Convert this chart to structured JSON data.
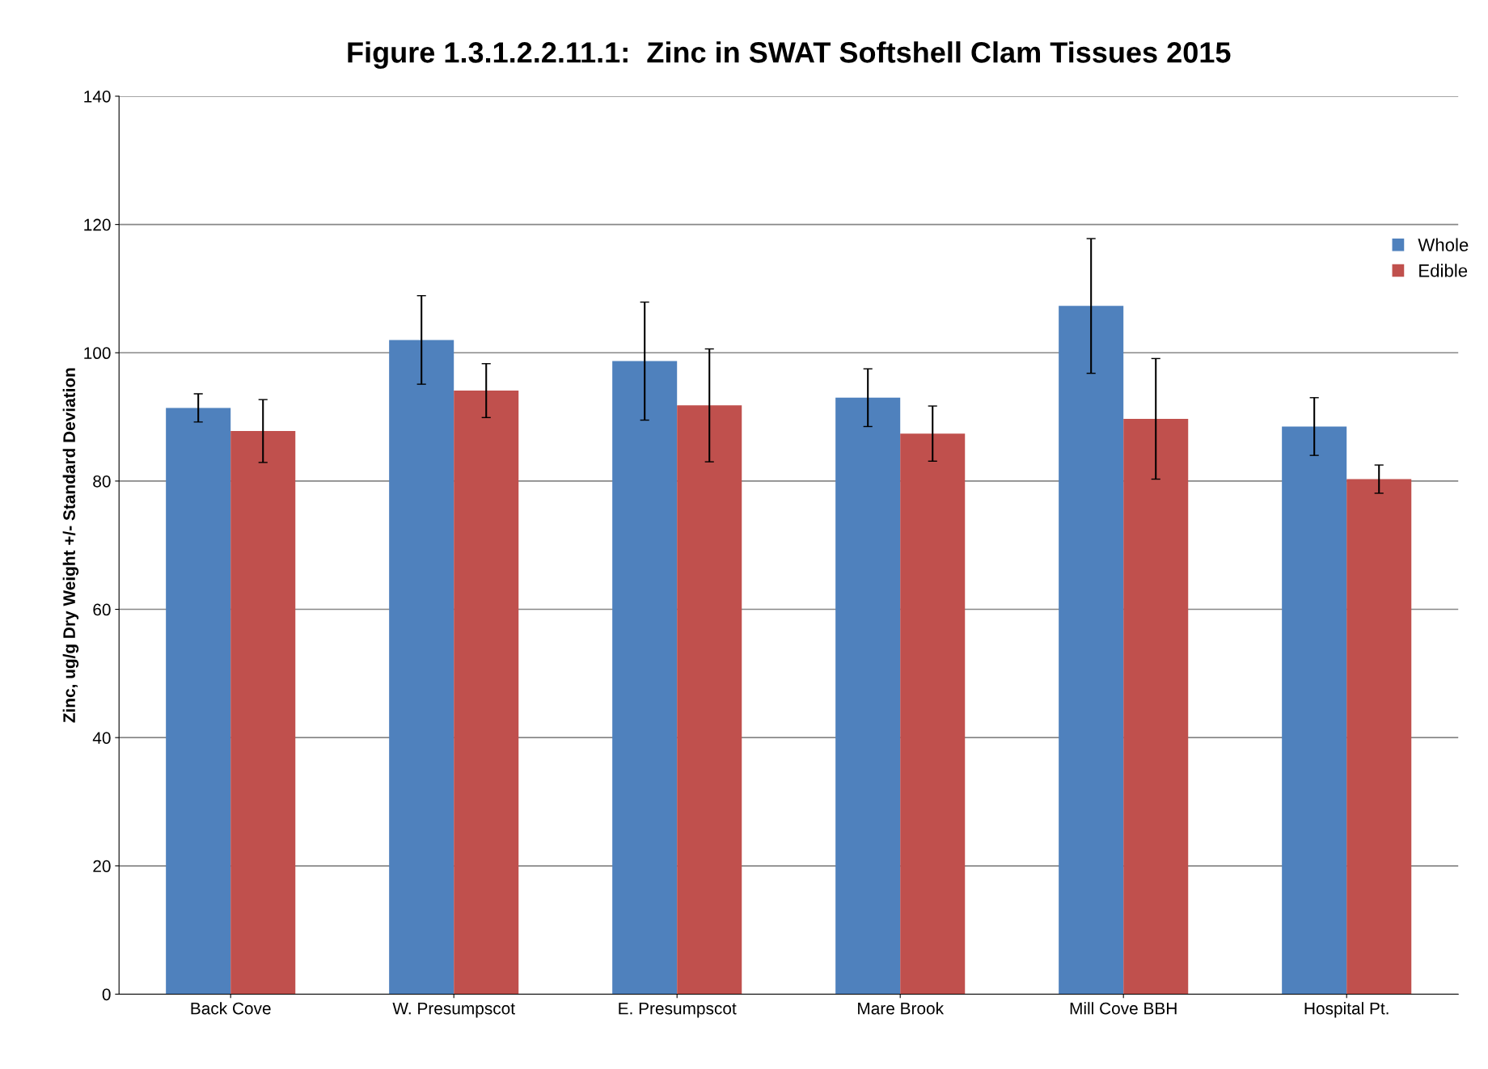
{
  "chart_data": {
    "type": "bar",
    "title": "Figure 1.3.1.2.2.11.1:  Zinc in SWAT Softshell Clam Tissues 2015",
    "ylabel": "Zinc, ug/g Dry Weight +/- Standard Deviation",
    "categories": [
      "Back Cove",
      "W. Presumpscot",
      "E. Presumpscot",
      "Mare Brook",
      "Mill Cove BBH",
      "Hospital Pt."
    ],
    "series": [
      {
        "name": "Whole",
        "color": "#4f81bd",
        "values": [
          91.4,
          102.0,
          98.7,
          93.0,
          107.3,
          88.5
        ],
        "errors": [
          2.2,
          6.9,
          9.2,
          4.5,
          10.5,
          4.5
        ]
      },
      {
        "name": "Edible",
        "color": "#c0504d",
        "values": [
          87.8,
          94.1,
          91.8,
          87.4,
          89.7,
          80.3
        ],
        "errors": [
          4.9,
          4.2,
          8.8,
          4.3,
          9.4,
          2.2
        ]
      }
    ],
    "ylim": [
      0,
      140
    ],
    "yticks": [
      0,
      20,
      40,
      60,
      80,
      100,
      120,
      140
    ],
    "grid": "y",
    "legend": "top right"
  }
}
